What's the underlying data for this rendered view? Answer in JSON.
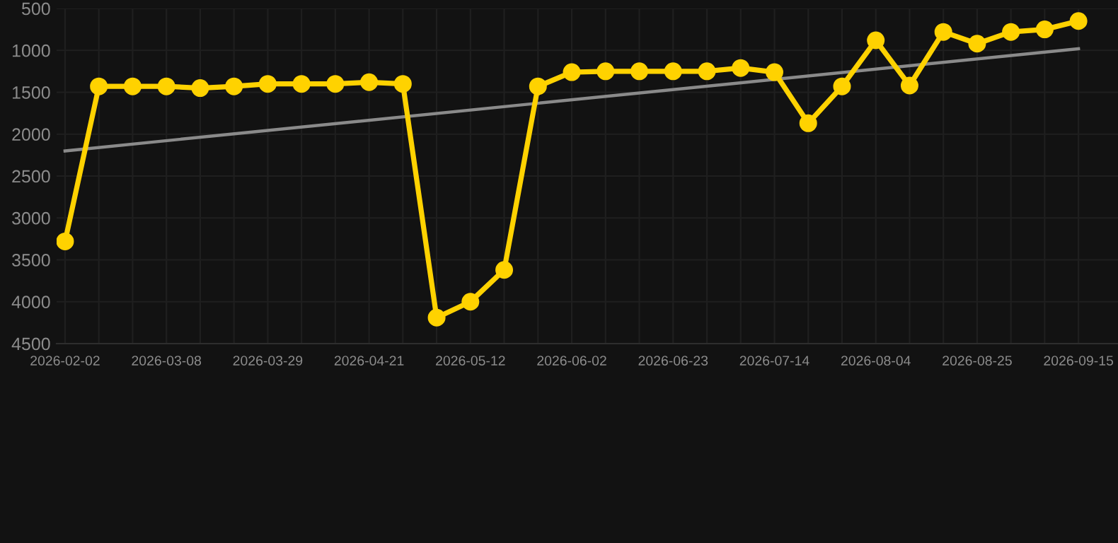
{
  "chart_data": {
    "type": "line",
    "categories": [
      "2026-02-02",
      null,
      null,
      "2026-03-08",
      null,
      null,
      "2026-03-29",
      null,
      null,
      "2026-04-21",
      null,
      null,
      "2026-05-12",
      null,
      null,
      "2026-06-02",
      null,
      null,
      "2026-06-23",
      null,
      null,
      "2026-07-14",
      null,
      null,
      "2026-08-04",
      null,
      null,
      "2026-08-25",
      null,
      null,
      "2026-09-15"
    ],
    "series": [
      {
        "color": "#ffd200",
        "values": [
          3280,
          1430,
          1430,
          1430,
          1450,
          1430,
          1400,
          1400,
          1400,
          1380,
          1400,
          4190,
          4000,
          3620,
          1430,
          1260,
          1250,
          1250,
          1250,
          1250,
          1210,
          1260,
          1870,
          1430,
          880,
          1420,
          780,
          920,
          780,
          750,
          650
        ],
        "marker": "circle"
      },
      {
        "type": "line",
        "color": "#8a8a8a",
        "values": [
          2200,
          null,
          null,
          null,
          null,
          null,
          null,
          null,
          null,
          null,
          null,
          null,
          null,
          null,
          null,
          null,
          null,
          null,
          null,
          null,
          null,
          null,
          null,
          null,
          null,
          null,
          null,
          null,
          null,
          null,
          980
        ],
        "marker": "none"
      }
    ],
    "ylim": [
      4500,
      500
    ],
    "yticks": [
      500,
      1000,
      1500,
      2000,
      2500,
      3000,
      3500,
      4000,
      4500
    ],
    "grid": true,
    "legend": false
  }
}
